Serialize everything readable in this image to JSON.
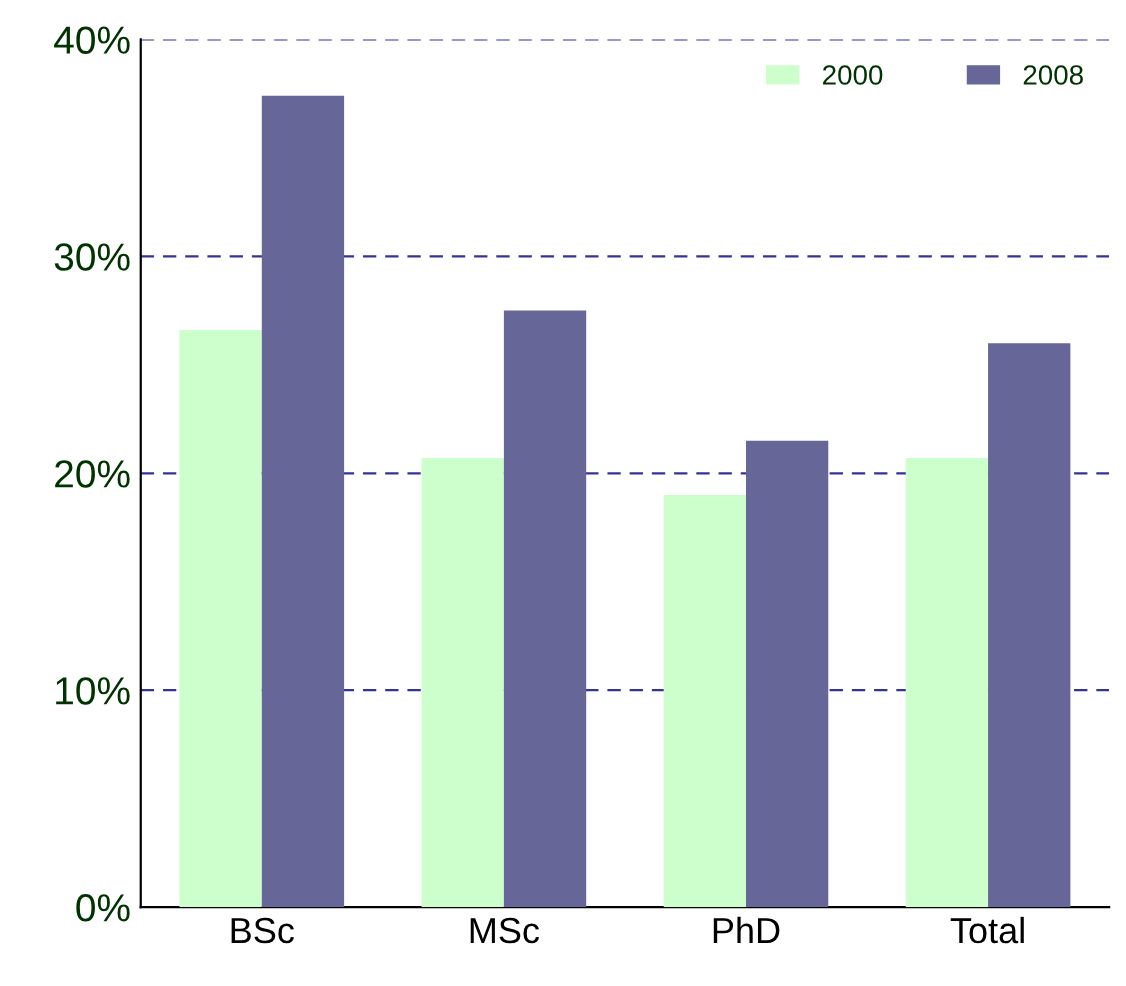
{
  "chart_data": {
    "type": "bar",
    "categories": [
      "BSc",
      "MSc",
      "PhD",
      "Total"
    ],
    "series": [
      {
        "name": "2000",
        "color": "#ccffcc",
        "values": [
          26.6,
          20.7,
          19.0,
          20.7
        ]
      },
      {
        "name": "2008",
        "color": "#666699",
        "values": [
          37.4,
          27.5,
          21.5,
          26.0
        ]
      }
    ],
    "ylim": [
      0,
      40
    ],
    "yticks": [
      {
        "value": 0,
        "label": "0%"
      },
      {
        "value": 10,
        "label": "10%"
      },
      {
        "value": 20,
        "label": "20%"
      },
      {
        "value": 30,
        "label": "30%"
      },
      {
        "value": 40,
        "label": "40%"
      }
    ],
    "grid": "y",
    "legend": "top right"
  }
}
